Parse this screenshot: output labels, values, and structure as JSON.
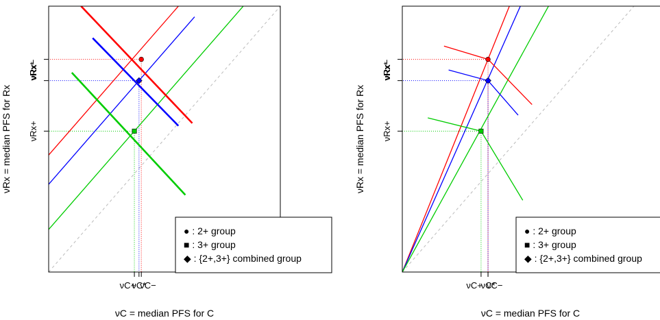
{
  "chart_data": [
    {
      "type": "line",
      "panel": "left",
      "xlabel": "νC = median PFS for C",
      "ylabel": "νRx = median PFS for Rx",
      "xlim": [
        0,
        10
      ],
      "ylim": [
        0,
        10
      ],
      "grid": false,
      "legend_placement": "bottom-right",
      "x_tick_labels": [
        "νC+",
        "νC*",
        "νC−"
      ],
      "y_tick_labels": [
        "νRx+",
        "νRx*",
        "νRx−"
      ],
      "reference_line": {
        "name": "identity",
        "x": [
          0,
          10
        ],
        "y": [
          0,
          10
        ],
        "color": "#bbbbbb",
        "dash": true
      },
      "points": [
        {
          "group": "2+",
          "x": 4.0,
          "y": 8.0,
          "color": "#ff0000",
          "marker": "circle"
        },
        {
          "group": "3+",
          "x": 3.7,
          "y": 5.3,
          "color": "#00cc00",
          "marker": "square"
        },
        {
          "group": "combined",
          "x": 3.9,
          "y": 7.2,
          "color": "#0000ff",
          "marker": "diamond"
        }
      ],
      "series": [
        {
          "color": "#ff0000",
          "width": 1.3,
          "x": [
            -0.2,
            6.4
          ],
          "y": [
            4.2,
            10.8
          ]
        },
        {
          "color": "#0000ff",
          "width": 1.3,
          "x": [
            -0.2,
            6.3
          ],
          "y": [
            3.1,
            9.6
          ]
        },
        {
          "color": "#00cc00",
          "width": 1.3,
          "x": [
            -0.2,
            9.1
          ],
          "y": [
            1.4,
            10.7
          ]
        },
        {
          "color": "#ff0000",
          "width": 2.6,
          "x": [
            1.4,
            6.2
          ],
          "y": [
            10.0,
            5.6
          ]
        },
        {
          "color": "#0000ff",
          "width": 2.6,
          "x": [
            1.9,
            5.6
          ],
          "y": [
            8.8,
            5.5
          ]
        },
        {
          "color": "#00cc00",
          "width": 2.6,
          "x": [
            1.0,
            5.9
          ],
          "y": [
            7.5,
            2.9
          ]
        }
      ],
      "guides": [
        {
          "color": "#ff0000",
          "x": 4.0,
          "y": 8.0
        },
        {
          "color": "#00cc00",
          "x": 3.7,
          "y": 5.3
        },
        {
          "color": "#0000ff",
          "x": 3.9,
          "y": 7.2
        }
      ],
      "legend": [
        "● : 2+ group",
        "■ : 3+ group",
        "◆ : {2+,3+} combined group"
      ]
    },
    {
      "type": "line",
      "panel": "right",
      "xlabel": "νC = median PFS for C",
      "ylabel": "νRx = median PFS for Rx",
      "xlim": [
        0,
        10
      ],
      "ylim": [
        0,
        10
      ],
      "grid": false,
      "legend_placement": "bottom-right",
      "x_tick_labels": [
        "νC+",
        "νC*",
        "νC−"
      ],
      "y_tick_labels": [
        "νRx+",
        "νRx*",
        "νRx−"
      ],
      "reference_line": {
        "name": "identity",
        "x": [
          0,
          10
        ],
        "y": [
          0,
          10
        ],
        "color": "#bbbbbb",
        "dash": true
      },
      "points": [
        {
          "group": "2+",
          "x": 3.7,
          "y": 8.0,
          "color": "#ff0000",
          "marker": "circle"
        },
        {
          "group": "3+",
          "x": 3.4,
          "y": 5.3,
          "color": "#00cc00",
          "marker": "square"
        },
        {
          "group": "combined",
          "x": 3.7,
          "y": 7.2,
          "color": "#0000ff",
          "marker": "diamond"
        }
      ],
      "series": [
        {
          "color": "#ff0000",
          "width": 1.3,
          "x": [
            0.0,
            4.9
          ],
          "y": [
            0.0,
            10.6
          ]
        },
        {
          "color": "#0000ff",
          "width": 1.3,
          "x": [
            0.0,
            5.3
          ],
          "y": [
            0.0,
            10.4
          ]
        },
        {
          "color": "#00cc00",
          "width": 1.3,
          "x": [
            0.0,
            6.5
          ],
          "y": [
            0.0,
            10.3
          ]
        },
        {
          "color": "#ff0000",
          "width": 1.3,
          "x": [
            1.8,
            3.7,
            5.6
          ],
          "y": [
            8.5,
            8.0,
            6.3
          ]
        },
        {
          "color": "#0000ff",
          "width": 1.3,
          "x": [
            2.0,
            3.7,
            5.0
          ],
          "y": [
            7.6,
            7.2,
            5.9
          ]
        },
        {
          "color": "#00cc00",
          "width": 1.3,
          "x": [
            1.1,
            3.4,
            5.2
          ],
          "y": [
            5.8,
            5.3,
            2.7
          ]
        }
      ],
      "guides": [
        {
          "color": "#ff0000",
          "x": 3.7,
          "y": 8.0
        },
        {
          "color": "#00cc00",
          "x": 3.4,
          "y": 5.3
        },
        {
          "color": "#0000ff",
          "x": 3.7,
          "y": 7.2
        }
      ],
      "legend": [
        "● : 2+ group",
        "■ : 3+ group",
        "◆ : {2+,3+} combined group"
      ]
    }
  ]
}
